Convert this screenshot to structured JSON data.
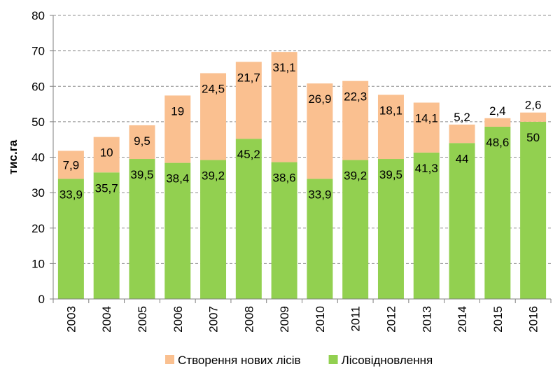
{
  "chart_data": {
    "type": "bar",
    "stacked": true,
    "categories": [
      "2003",
      "2004",
      "2005",
      "2006",
      "2007",
      "2008",
      "2009",
      "2010",
      "2011",
      "2012",
      "2013",
      "2014",
      "2015",
      "2016"
    ],
    "series": [
      {
        "name": "Лісовідновлення",
        "color": "#92d050",
        "values": [
          33.9,
          35.7,
          39.5,
          38.4,
          39.2,
          45.2,
          38.6,
          33.9,
          39.2,
          39.5,
          41.3,
          44,
          48.6,
          50
        ],
        "labels": [
          "33,9",
          "35,7",
          "39,5",
          "38,4",
          "39,2",
          "45,2",
          "38,6",
          "33,9",
          "39,2",
          "39,5",
          "41,3",
          "44",
          "48,6",
          "50"
        ]
      },
      {
        "name": "Створення нових лісів",
        "color": "#fac090",
        "values": [
          7.9,
          10,
          9.5,
          19,
          24.5,
          21.7,
          31.1,
          26.9,
          22.3,
          18.1,
          14.1,
          5.2,
          2.4,
          2.6
        ],
        "labels": [
          "7,9",
          "10",
          "9,5",
          "19",
          "24,5",
          "21,7",
          "31,1",
          "26,9",
          "22,3",
          "18,1",
          "14,1",
          "5,2",
          "2,4",
          "2,6"
        ]
      }
    ],
    "legend_order": [
      1,
      0
    ],
    "ylabel": "тис.га",
    "xlabel": "",
    "title": "",
    "ylim": [
      0,
      80
    ],
    "yticks": [
      "0",
      "10",
      "20",
      "30",
      "40",
      "50",
      "60",
      "70",
      "80"
    ],
    "grid": true,
    "legend_position": "bottom"
  }
}
